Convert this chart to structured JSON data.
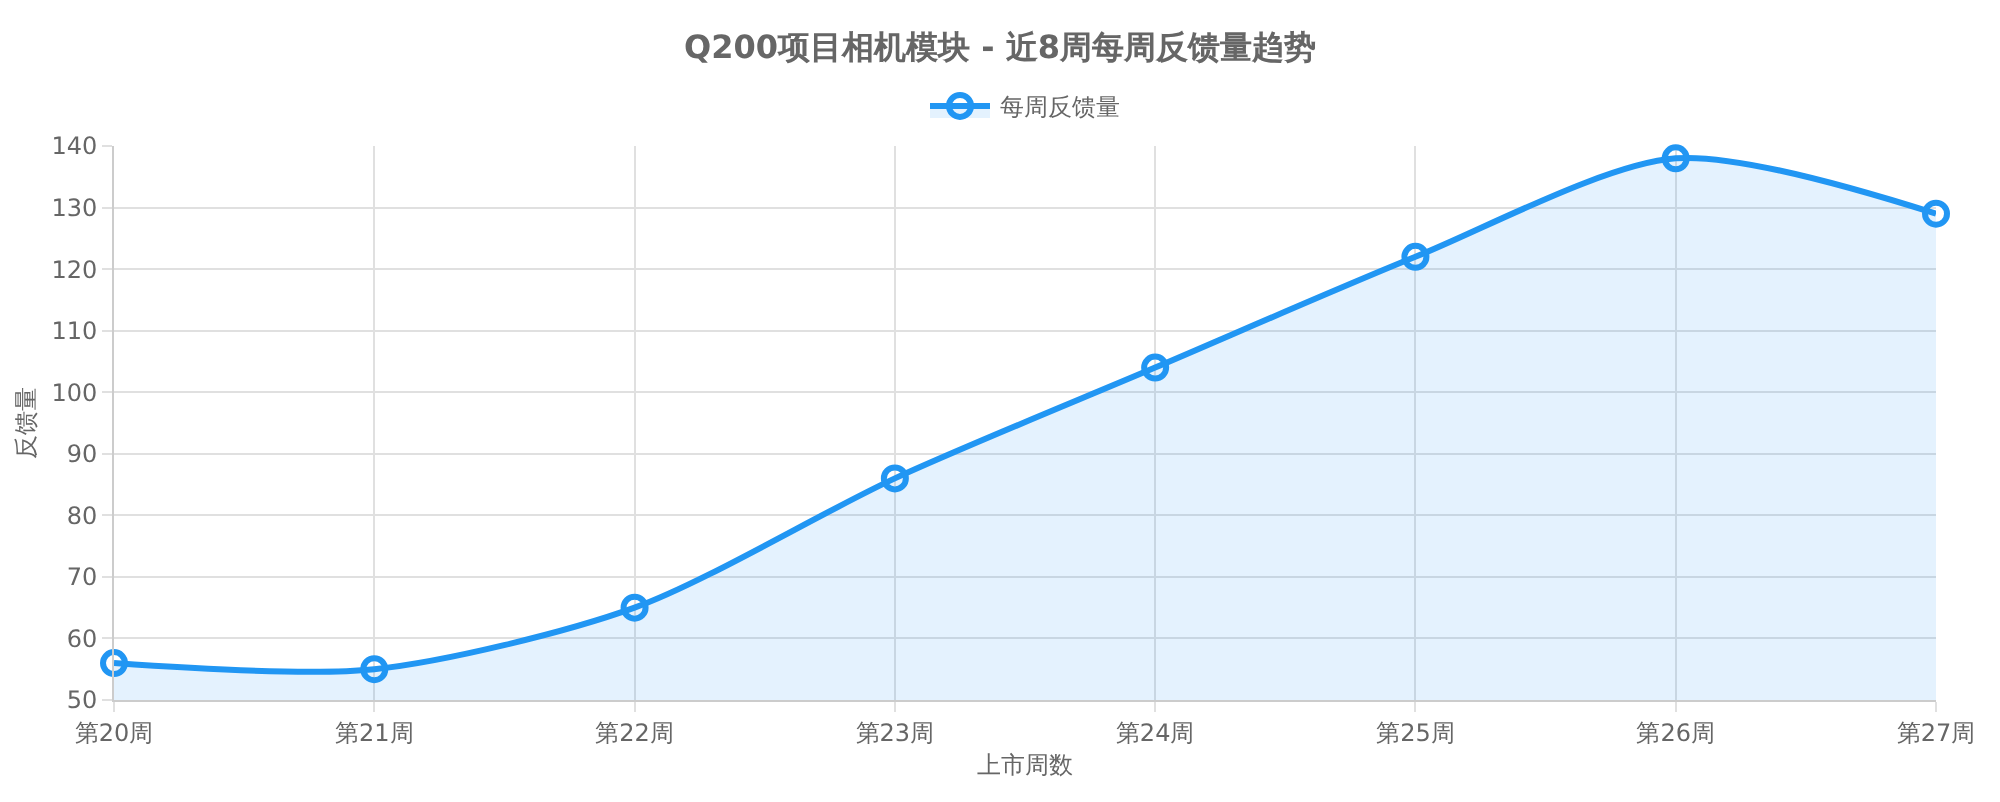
{
  "chart_data": {
    "type": "area",
    "title": "Q200项目相机模块 - 近8周每周反馈量趋势",
    "xlabel": "上市周数",
    "ylabel": "反馈量",
    "categories": [
      "第20周",
      "第21周",
      "第22周",
      "第23周",
      "第24周",
      "第25周",
      "第26周",
      "第27周"
    ],
    "series": [
      {
        "name": "每周反馈量",
        "color": "#2196f3",
        "values": [
          56,
          55,
          65,
          86,
          104,
          122,
          138,
          129
        ]
      }
    ],
    "ylim": [
      50,
      140
    ],
    "yticks": [
      50,
      60,
      70,
      80,
      90,
      100,
      110,
      120,
      130,
      140
    ],
    "grid": true,
    "legend": "top",
    "marker": "circle",
    "line_style": "solid"
  }
}
